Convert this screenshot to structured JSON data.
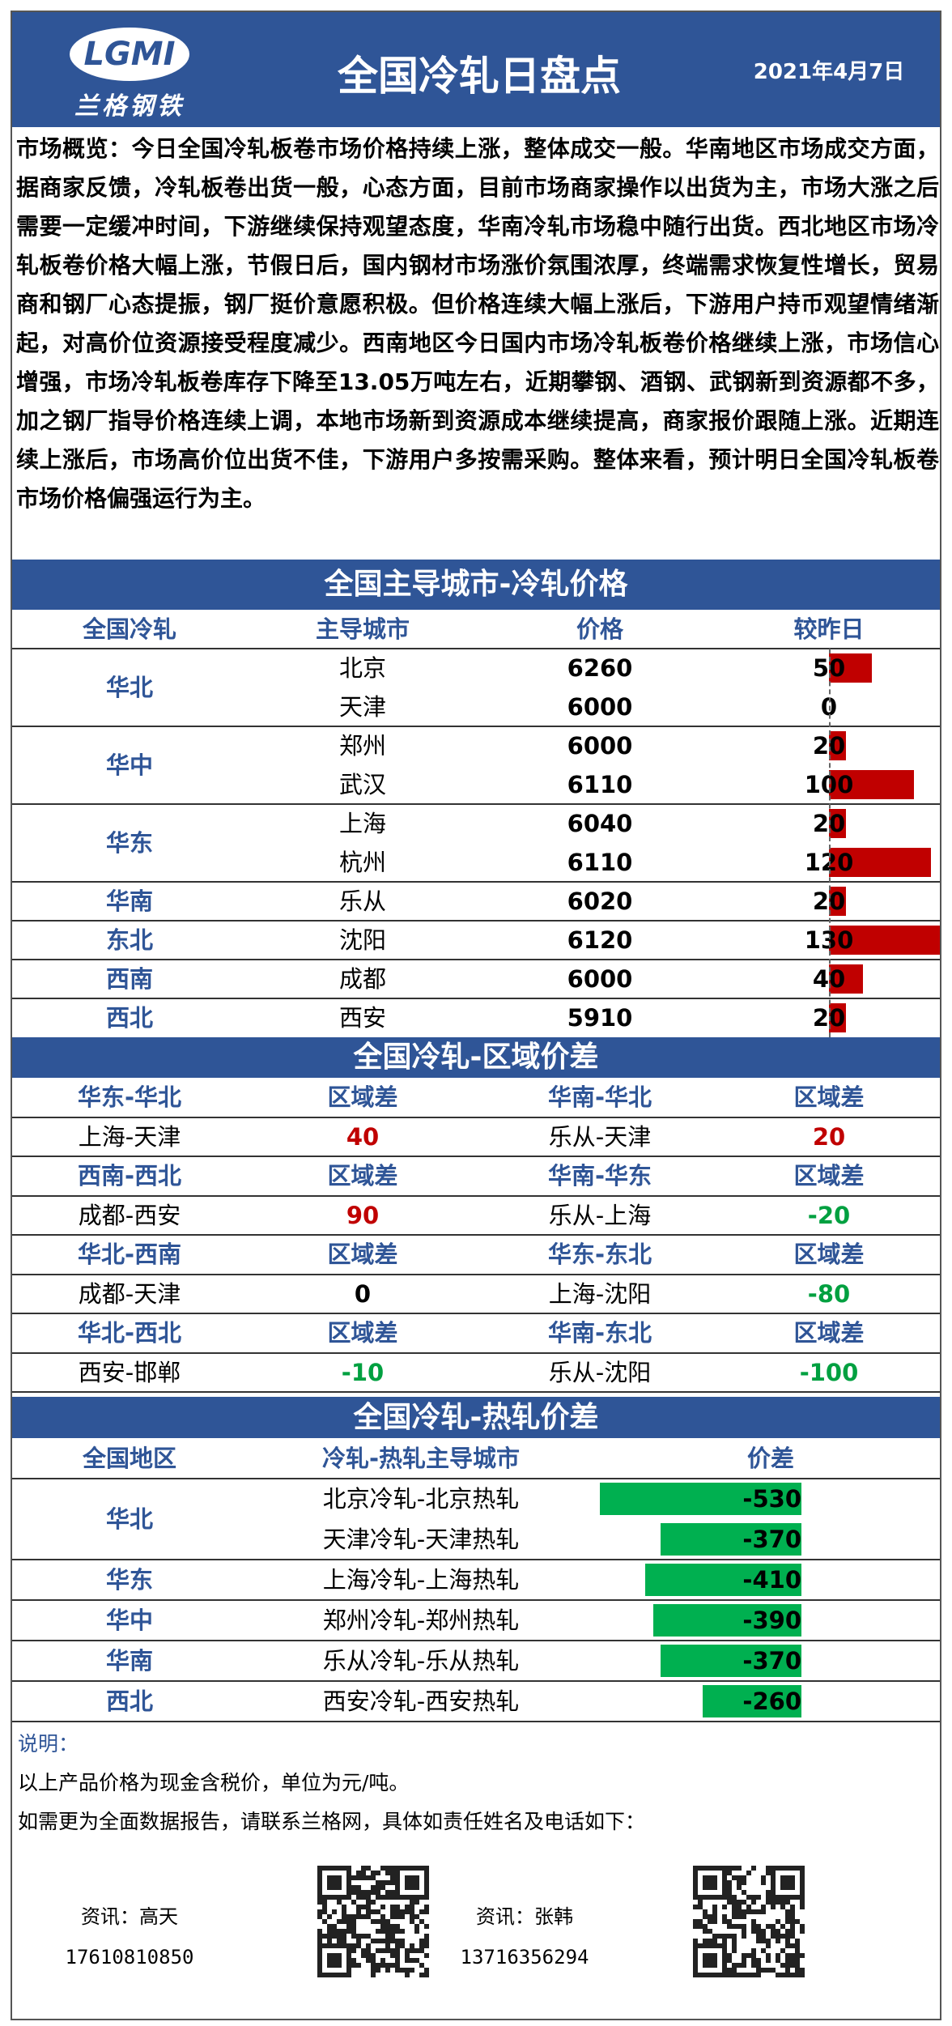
{
  "header": {
    "logo": "LGMI",
    "brand": "兰格钢铁",
    "title": "全国冷轧日盘点",
    "date": "2021年4月7日"
  },
  "overview": "市场概览：今日全国冷轧板卷市场价格持续上涨，整体成交一般。华南地区市场成交方面，据商家反馈，冷轧板卷出货一般，心态方面，目前市场商家操作以出货为主，市场大涨之后需要一定缓冲时间，下游继续保持观望态度，华南冷轧市场稳中随行出货。西北地区市场冷轧板卷价格大幅上涨，节假日后，国内钢材市场涨价氛围浓厚，终端需求恢复性增长，贸易商和钢厂心态提振，钢厂挺价意愿积极。但价格连续大幅上涨后，下游用户持币观望情绪渐起，对高价位资源接受程度减少。西南地区今日国内市场冷轧板卷价格继续上涨，市场信心增强，市场冷轧板卷库存下降至13.05万吨左右，近期攀钢、酒钢、武钢新到资源都不多，加之钢厂指导价格连续上调，本地市场新到资源成本继续提高，商家报价跟随上涨。近期连续上涨后，市场高价位出货不佳，下游用户多按需采购。整体来看，预计明日全国冷轧板卷市场价格偏强运行为主。",
  "prices": {
    "title": "全国主导城市-冷轧价格",
    "columns": [
      "全国冷轧",
      "主导城市",
      "价格",
      "较昨日"
    ],
    "groups": [
      {
        "region": "华北",
        "rows": [
          {
            "city": "北京",
            "price": 6260,
            "change": 50
          },
          {
            "city": "天津",
            "price": 6000,
            "change": 0
          }
        ]
      },
      {
        "region": "华中",
        "rows": [
          {
            "city": "郑州",
            "price": 6000,
            "change": 20
          },
          {
            "city": "武汉",
            "price": 6110,
            "change": 100
          }
        ]
      },
      {
        "region": "华东",
        "rows": [
          {
            "city": "上海",
            "price": 6040,
            "change": 20
          },
          {
            "city": "杭州",
            "price": 6110,
            "change": 120
          }
        ]
      },
      {
        "region": "华南",
        "rows": [
          {
            "city": "乐从",
            "price": 6020,
            "change": 20
          }
        ]
      },
      {
        "region": "东北",
        "rows": [
          {
            "city": "沈阳",
            "price": 6120,
            "change": 130
          }
        ]
      },
      {
        "region": "西南",
        "rows": [
          {
            "city": "成都",
            "price": 6000,
            "change": 40
          }
        ]
      },
      {
        "region": "西北",
        "rows": [
          {
            "city": "西安",
            "price": 5910,
            "change": 20
          }
        ]
      }
    ]
  },
  "spreads": {
    "title": "全国冷轧-区域价差",
    "rows": [
      [
        {
          "pair": "华东-华北",
          "head": "区域差",
          "cities": "上海-天津",
          "value": 40
        },
        {
          "pair": "华南-华北",
          "head": "区域差",
          "cities": "乐从-天津",
          "value": 20
        }
      ],
      [
        {
          "pair": "西南-西北",
          "head": "区域差",
          "cities": "成都-西安",
          "value": 90
        },
        {
          "pair": "华南-华东",
          "head": "区域差",
          "cities": "乐从-上海",
          "value": -20
        }
      ],
      [
        {
          "pair": "华北-西南",
          "head": "区域差",
          "cities": "成都-天津",
          "value": 0
        },
        {
          "pair": "华东-东北",
          "head": "区域差",
          "cities": "上海-沈阳",
          "value": -80
        }
      ],
      [
        {
          "pair": "华北-西北",
          "head": "区域差",
          "cities": "西安-邯郸",
          "value": -10
        },
        {
          "pair": "华南-东北",
          "head": "区域差",
          "cities": "乐从-沈阳",
          "value": -100
        }
      ]
    ]
  },
  "hot": {
    "title": "全国冷轧-热轧价差",
    "columns": [
      "全国地区",
      "冷轧-热轧主导城市",
      "价差"
    ],
    "groups": [
      {
        "region": "华北",
        "rows": [
          {
            "item": "北京冷轧-北京热轧",
            "value": -530
          },
          {
            "item": "天津冷轧-天津热轧",
            "value": -370
          }
        ]
      },
      {
        "region": "华东",
        "rows": [
          {
            "item": "上海冷轧-上海热轧",
            "value": -410
          }
        ]
      },
      {
        "region": "华中",
        "rows": [
          {
            "item": "郑州冷轧-郑州热轧",
            "value": -390
          }
        ]
      },
      {
        "region": "华南",
        "rows": [
          {
            "item": "乐从冷轧-乐从热轧",
            "value": -370
          }
        ]
      },
      {
        "region": "西北",
        "rows": [
          {
            "item": "西安冷轧-西安热轧",
            "value": -260
          }
        ]
      }
    ]
  },
  "notes": {
    "label": "说明：",
    "lines": [
      "以上产品价格为现金含税价，单位为元/吨。",
      "如需更为全面数据报告，请联系兰格网，具体如责任姓名及电话如下："
    ],
    "contacts": [
      {
        "name": "资讯：高天",
        "phone": "17610810850"
      },
      {
        "name": "资讯：张韩",
        "phone": "13716356294"
      }
    ]
  }
}
